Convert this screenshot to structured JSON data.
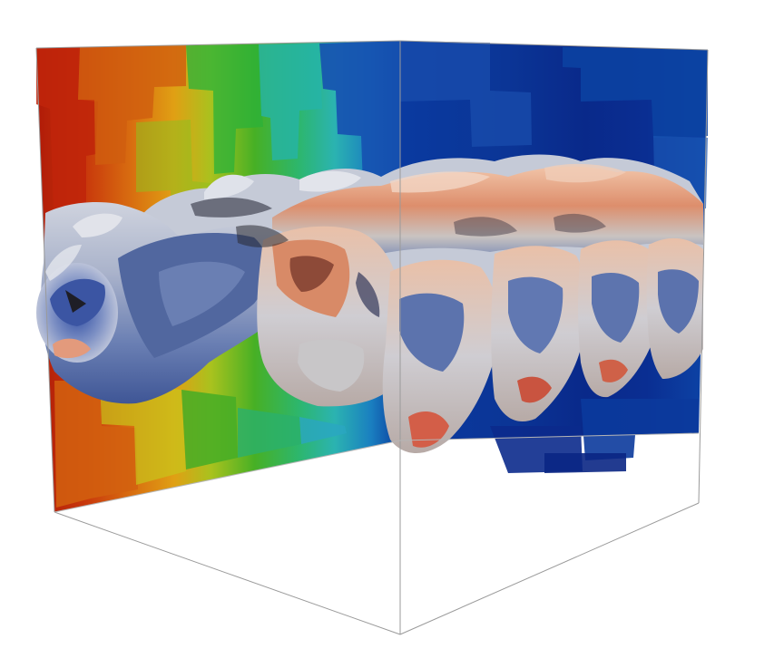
{
  "scene": {
    "description_shown": "",
    "background_color": "#ffffff",
    "colormap": [
      "#b01a08",
      "#d2560d",
      "#e39a12",
      "#9fc01e",
      "#3daa25",
      "#2fb08a",
      "#2a8fc4",
      "#1457b0",
      "#0a2f8c",
      "#071f78"
    ],
    "surface_colors": [
      "#3c5aa8",
      "#7c8fbe",
      "#d7dae2",
      "#e8b9a0",
      "#d8775a",
      "#2b2b2b"
    ],
    "frame_color": "#9a9a9a"
  }
}
